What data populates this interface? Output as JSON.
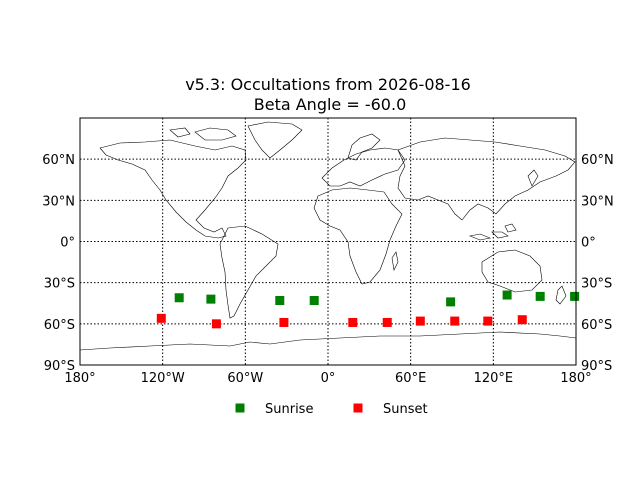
{
  "chart_data": {
    "type": "scatter",
    "title": "v5.3: Occultations from 2026-08-16",
    "subtitle": "Beta Angle = -60.0",
    "projection": "cylindrical",
    "xlim": [
      -180,
      180
    ],
    "ylim": [
      -90,
      90
    ],
    "grid": true,
    "gridlines_lon": [
      -120,
      -60,
      0,
      60,
      120
    ],
    "gridlines_lat": [
      -60,
      -30,
      0,
      30,
      60
    ],
    "x_ticks": [
      {
        "value": -180,
        "label": "180°"
      },
      {
        "value": -120,
        "label": "120°W"
      },
      {
        "value": -60,
        "label": "60°W"
      },
      {
        "value": 0,
        "label": "0°"
      },
      {
        "value": 60,
        "label": "60°E"
      },
      {
        "value": 120,
        "label": "120°E"
      },
      {
        "value": 180,
        "label": "180°"
      }
    ],
    "y_ticks": [
      {
        "value": 60,
        "label": "60°N"
      },
      {
        "value": 30,
        "label": "30°N"
      },
      {
        "value": 0,
        "label": "0°"
      },
      {
        "value": -30,
        "label": "30°S"
      },
      {
        "value": -60,
        "label": "60°S"
      },
      {
        "value": -90,
        "label": "90°S"
      }
    ],
    "legend_position": "bottom-center",
    "series": [
      {
        "name": "Sunrise",
        "color": "#008000",
        "marker": "square",
        "points": [
          {
            "lon": -108,
            "lat": -41
          },
          {
            "lon": -85,
            "lat": -42
          },
          {
            "lon": -35,
            "lat": -43
          },
          {
            "lon": -10,
            "lat": -43
          },
          {
            "lon": 89,
            "lat": -44
          },
          {
            "lon": 130,
            "lat": -39
          },
          {
            "lon": 154,
            "lat": -40
          },
          {
            "lon": 179,
            "lat": -40
          }
        ]
      },
      {
        "name": "Sunset",
        "color": "#ff0000",
        "marker": "square",
        "points": [
          {
            "lon": -121,
            "lat": -56
          },
          {
            "lon": -81,
            "lat": -60
          },
          {
            "lon": -32,
            "lat": -59
          },
          {
            "lon": 18,
            "lat": -59
          },
          {
            "lon": 43,
            "lat": -59
          },
          {
            "lon": 67,
            "lat": -58
          },
          {
            "lon": 92,
            "lat": -58
          },
          {
            "lon": 116,
            "lat": -58
          },
          {
            "lon": 141,
            "lat": -57
          }
        ]
      }
    ]
  }
}
